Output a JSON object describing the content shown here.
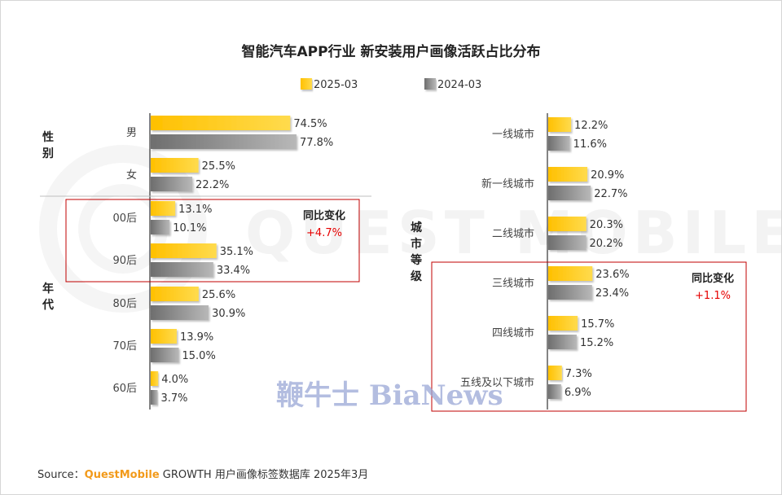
{
  "chart_data": {
    "type": "bar",
    "title": "智能汽车APP行业 新安装用户画像活跃占比分布",
    "legend": [
      {
        "name": "2025-03",
        "color": "#ffbf00"
      },
      {
        "name": "2024-03",
        "color": "#7f7f7f"
      }
    ],
    "unit": "%",
    "xlim": [
      0,
      100
    ],
    "panels": [
      {
        "id": "left",
        "groups": [
          {
            "label": "性\n别",
            "categories": [
              "男",
              "女"
            ]
          },
          {
            "label": "年\n代",
            "categories": [
              "00后",
              "90后",
              "80后",
              "70后",
              "60后"
            ]
          }
        ],
        "categories": [
          "男",
          "女",
          "00后",
          "90后",
          "80后",
          "70后",
          "60后"
        ],
        "series": [
          {
            "name": "2025-03",
            "values": [
              74.5,
              25.5,
              13.1,
              35.1,
              25.6,
              13.9,
              4.0
            ]
          },
          {
            "name": "2024-03",
            "values": [
              77.8,
              22.2,
              10.1,
              33.4,
              30.9,
              15.0,
              3.7
            ]
          }
        ],
        "value_labels": {
          "2025-03": [
            "74.5%",
            "25.5%",
            "13.1%",
            "35.1%",
            "25.6%",
            "13.9%",
            "4.0%"
          ],
          "2024-03": [
            "77.8%",
            "22.2%",
            "10.1%",
            "33.4%",
            "30.9%",
            "15.0%",
            "3.7%"
          ]
        },
        "annotation": {
          "title": "同比变化",
          "value": "+4.7%",
          "highlight": [
            "00后",
            "90后"
          ]
        }
      },
      {
        "id": "right",
        "groups": [
          {
            "label": "城\n市\n等\n级",
            "categories": [
              "一线城市",
              "新一线城市",
              "二线城市",
              "三线城市",
              "四线城市",
              "五线及以下城市"
            ]
          }
        ],
        "categories": [
          "一线城市",
          "新一线城市",
          "二线城市",
          "三线城市",
          "四线城市",
          "五线及以下城市"
        ],
        "series": [
          {
            "name": "2025-03",
            "values": [
              12.2,
              20.9,
              20.3,
              23.6,
              15.7,
              7.3
            ]
          },
          {
            "name": "2024-03",
            "values": [
              11.6,
              22.7,
              20.2,
              23.4,
              15.2,
              6.9
            ]
          }
        ],
        "value_labels": {
          "2025-03": [
            "12.2%",
            "20.9%",
            "20.3%",
            "23.6%",
            "15.7%",
            "7.3%"
          ],
          "2024-03": [
            "11.6%",
            "22.7%",
            "20.2%",
            "23.4%",
            "15.2%",
            "6.9%"
          ]
        },
        "annotation": {
          "title": "同比变化",
          "value": "+1.1%",
          "highlight": [
            "三线城市",
            "四线城市",
            "五线及以下城市"
          ]
        }
      }
    ]
  },
  "source": {
    "label": "Source：",
    "brand": "QuestMobile",
    "text": " GROWTH 用户画像标签数据库 2025年3月"
  },
  "watermark": {
    "text": "鞭牛士 BiaNews",
    "brand_mark": "QUEST MOBILE"
  }
}
